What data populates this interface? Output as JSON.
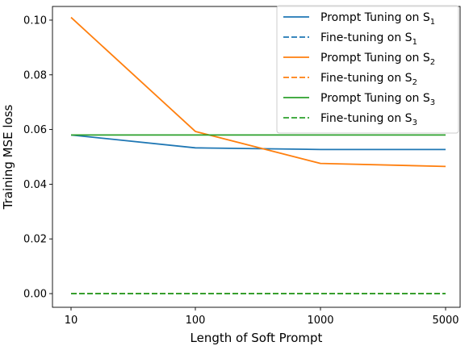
{
  "chart_data": {
    "type": "line",
    "xlabel": "Length of Soft Prompt",
    "ylabel": "Training MSE loss",
    "categories": [
      "10",
      "100",
      "1000",
      "5000"
    ],
    "ylim": [
      -0.005,
      0.105
    ],
    "yticks": [
      0.0,
      0.02,
      0.04,
      0.06,
      0.08,
      0.1
    ],
    "ytick_labels": [
      "0.00",
      "0.02",
      "0.04",
      "0.06",
      "0.08",
      "0.10"
    ],
    "grid": false,
    "legend_position": "top-right",
    "series": [
      {
        "name": "Prompt Tuning on S",
        "sub": "1",
        "color": "#1f77b4",
        "dash": false,
        "values": [
          0.058,
          0.0533,
          0.0527,
          0.0527
        ]
      },
      {
        "name": "Fine-tuning on S",
        "sub": "1",
        "color": "#1f77b4",
        "dash": true,
        "values": [
          0.0,
          0.0,
          0.0,
          0.0
        ]
      },
      {
        "name": "Prompt Tuning on S",
        "sub": "2",
        "color": "#ff7f0e",
        "dash": false,
        "values": [
          0.101,
          0.0593,
          0.0476,
          0.0465
        ]
      },
      {
        "name": "Fine-tuning on S",
        "sub": "2",
        "color": "#ff7f0e",
        "dash": true,
        "values": [
          0.0,
          0.0,
          0.0,
          0.0
        ]
      },
      {
        "name": "Prompt Tuning on S",
        "sub": "3",
        "color": "#2ca02c",
        "dash": false,
        "values": [
          0.058,
          0.058,
          0.058,
          0.058
        ]
      },
      {
        "name": "Fine-tuning on S",
        "sub": "3",
        "color": "#2ca02c",
        "dash": true,
        "values": [
          0.0,
          0.0,
          0.0,
          0.0
        ]
      }
    ]
  }
}
